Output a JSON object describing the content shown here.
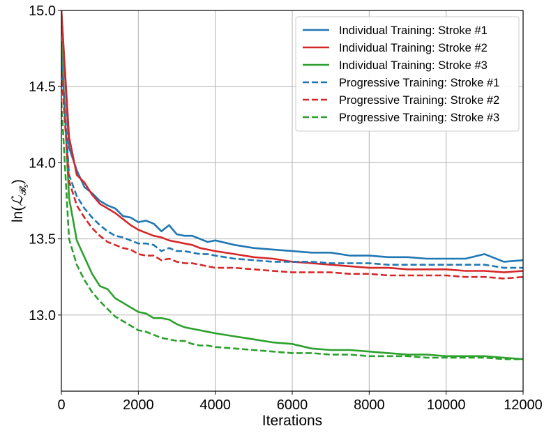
{
  "chart_data": {
    "type": "line",
    "title": "",
    "xlabel": "Iterations",
    "ylabel_prefix": "ln(",
    "ylabel_symbol": "ℒ",
    "ylabel_subscript": "𝓑",
    "ylabel_subsubscript": "s",
    "ylabel_suffix": ")",
    "xlim": [
      0,
      12000
    ],
    "ylim": [
      12.5,
      15.0
    ],
    "xticks": [
      0,
      2000,
      4000,
      6000,
      8000,
      10000,
      12000
    ],
    "xtick_labels": [
      "0",
      "2000",
      "4000",
      "6000",
      "8000",
      "10000",
      "12000"
    ],
    "yticks": [
      13.0,
      13.5,
      14.0,
      14.5,
      15.0
    ],
    "ytick_labels": [
      "13.0",
      "13.5",
      "14.0",
      "14.5",
      "15.0"
    ],
    "grid": true,
    "legend_position": "top-right",
    "series": [
      {
        "name": "Individual Training: Stroke #1",
        "color": "#1f77b4",
        "dash": "solid",
        "x": [
          0,
          200,
          400,
          600,
          800,
          1000,
          1200,
          1400,
          1600,
          1800,
          2000,
          2200,
          2400,
          2600,
          2800,
          3000,
          3200,
          3400,
          3600,
          3800,
          4000,
          4500,
          5000,
          5500,
          6000,
          6500,
          7000,
          7500,
          8000,
          8500,
          9000,
          9500,
          10000,
          10500,
          11000,
          11500,
          12000
        ],
        "values": [
          15.0,
          14.1,
          13.95,
          13.84,
          13.8,
          13.75,
          13.72,
          13.7,
          13.65,
          13.64,
          13.61,
          13.62,
          13.6,
          13.55,
          13.59,
          13.53,
          13.52,
          13.52,
          13.5,
          13.48,
          13.49,
          13.46,
          13.44,
          13.43,
          13.42,
          13.41,
          13.41,
          13.39,
          13.39,
          13.38,
          13.38,
          13.37,
          13.37,
          13.37,
          13.4,
          13.35,
          13.36
        ]
      },
      {
        "name": "Individual Training: Stroke #2",
        "color": "#d62728",
        "dash": "solid",
        "x": [
          0,
          200,
          400,
          600,
          800,
          1000,
          1200,
          1400,
          1600,
          1800,
          2000,
          2200,
          2400,
          2600,
          2800,
          3000,
          3200,
          3400,
          3600,
          3800,
          4000,
          4500,
          5000,
          5500,
          6000,
          6500,
          7000,
          7500,
          8000,
          8500,
          9000,
          9500,
          10000,
          10500,
          11000,
          11500,
          12000
        ],
        "values": [
          15.0,
          14.17,
          13.92,
          13.87,
          13.79,
          13.73,
          13.7,
          13.67,
          13.63,
          13.59,
          13.56,
          13.54,
          13.52,
          13.51,
          13.49,
          13.48,
          13.47,
          13.46,
          13.44,
          13.43,
          13.42,
          13.4,
          13.38,
          13.37,
          13.35,
          13.34,
          13.33,
          13.32,
          13.31,
          13.31,
          13.3,
          13.3,
          13.3,
          13.29,
          13.29,
          13.28,
          13.29
        ]
      },
      {
        "name": "Individual Training: Stroke #3",
        "color": "#2ca02c",
        "dash": "solid",
        "x": [
          0,
          200,
          400,
          600,
          800,
          1000,
          1200,
          1400,
          1600,
          1800,
          2000,
          2200,
          2400,
          2600,
          2800,
          3000,
          3200,
          3400,
          3600,
          3800,
          4000,
          4500,
          5000,
          5500,
          6000,
          6500,
          7000,
          7500,
          8000,
          8500,
          9000,
          9500,
          10000,
          10500,
          11000,
          11500,
          12000
        ],
        "values": [
          14.8,
          13.77,
          13.49,
          13.38,
          13.27,
          13.19,
          13.17,
          13.11,
          13.08,
          13.05,
          13.02,
          13.01,
          12.98,
          12.98,
          12.97,
          12.94,
          12.92,
          12.91,
          12.9,
          12.89,
          12.88,
          12.86,
          12.84,
          12.82,
          12.81,
          12.78,
          12.77,
          12.77,
          12.76,
          12.75,
          12.74,
          12.74,
          12.73,
          12.73,
          12.73,
          12.72,
          12.71
        ]
      },
      {
        "name": "Progressive Training: Stroke #1",
        "color": "#1f77b4",
        "dash": "dashed",
        "x": [
          0,
          200,
          400,
          600,
          800,
          1000,
          1200,
          1400,
          1600,
          1800,
          2000,
          2200,
          2400,
          2600,
          2800,
          3000,
          3200,
          3400,
          3600,
          3800,
          4000,
          4500,
          5000,
          5500,
          6000,
          6500,
          7000,
          7500,
          8000,
          8500,
          9000,
          9500,
          10000,
          10500,
          11000,
          11500,
          12000
        ],
        "values": [
          14.7,
          13.92,
          13.78,
          13.7,
          13.64,
          13.59,
          13.55,
          13.52,
          13.51,
          13.49,
          13.47,
          13.47,
          13.46,
          13.42,
          13.44,
          13.42,
          13.42,
          13.41,
          13.4,
          13.4,
          13.39,
          13.37,
          13.36,
          13.35,
          13.35,
          13.35,
          13.34,
          13.34,
          13.34,
          13.33,
          13.33,
          13.33,
          13.33,
          13.33,
          13.33,
          13.31,
          13.31
        ]
      },
      {
        "name": "Progressive Training: Stroke #2",
        "color": "#d62728",
        "dash": "dashed",
        "x": [
          0,
          200,
          400,
          600,
          800,
          1000,
          1200,
          1400,
          1600,
          1800,
          2000,
          2200,
          2400,
          2600,
          2800,
          3000,
          3200,
          3400,
          3600,
          3800,
          4000,
          4500,
          5000,
          5500,
          6000,
          6500,
          7000,
          7500,
          8000,
          8500,
          9000,
          9500,
          10000,
          10500,
          11000,
          11500,
          12000
        ],
        "values": [
          14.6,
          13.88,
          13.72,
          13.64,
          13.57,
          13.52,
          13.48,
          13.46,
          13.44,
          13.43,
          13.4,
          13.39,
          13.39,
          13.36,
          13.37,
          13.35,
          13.34,
          13.34,
          13.33,
          13.32,
          13.31,
          13.31,
          13.3,
          13.29,
          13.28,
          13.28,
          13.28,
          13.27,
          13.27,
          13.26,
          13.26,
          13.26,
          13.26,
          13.25,
          13.25,
          13.24,
          13.25
        ]
      },
      {
        "name": "Progressive Training: Stroke #3",
        "color": "#2ca02c",
        "dash": "dashed",
        "x": [
          0,
          200,
          400,
          600,
          800,
          1000,
          1200,
          1400,
          1600,
          1800,
          2000,
          2200,
          2400,
          2600,
          2800,
          3000,
          3200,
          3400,
          3600,
          3800,
          4000,
          4500,
          5000,
          5500,
          6000,
          6500,
          7000,
          7500,
          8000,
          8500,
          9000,
          9500,
          10000,
          10500,
          11000,
          11500,
          12000
        ],
        "values": [
          14.4,
          13.5,
          13.33,
          13.23,
          13.15,
          13.09,
          13.04,
          12.99,
          12.96,
          12.93,
          12.9,
          12.89,
          12.87,
          12.85,
          12.84,
          12.83,
          12.83,
          12.81,
          12.8,
          12.8,
          12.79,
          12.78,
          12.77,
          12.76,
          12.75,
          12.75,
          12.74,
          12.74,
          12.73,
          12.73,
          12.73,
          12.72,
          12.72,
          12.72,
          12.72,
          12.71,
          12.71
        ]
      }
    ]
  }
}
